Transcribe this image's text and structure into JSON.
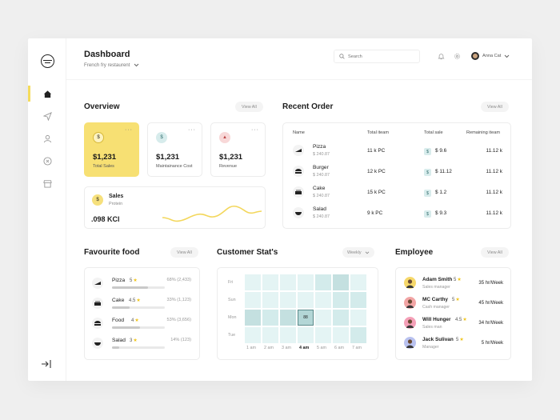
{
  "header": {
    "title": "Dashboard",
    "subtitle": "French fry restaurent",
    "search_placeholder": "Search",
    "user_name": "Anna Cat"
  },
  "sidebar": {
    "icons": [
      "logo-icon",
      "home-icon",
      "send-icon",
      "user-icon",
      "dollar-icon",
      "store-icon",
      "logout-icon"
    ],
    "active": "home-icon"
  },
  "overview": {
    "title": "Overview",
    "view_all": "View All",
    "cards": [
      {
        "value": "$1,231",
        "label": "Total Sales",
        "color": "#f7e073",
        "icon": "dollar-icon"
      },
      {
        "value": "$1,231",
        "label": "Maintainance Cost",
        "color": "#d7ecec",
        "icon": "dollar-icon"
      },
      {
        "value": "$1,231",
        "label": "Revenue",
        "color": "#f8d8d8",
        "icon": "pizza-icon"
      }
    ],
    "sales": {
      "name": "Sales",
      "sub": "Protein",
      "value": ".098 KCl"
    }
  },
  "recent_order": {
    "title": "Recent Order",
    "view_all": "View All",
    "columns": [
      "Name",
      "Total iteam",
      "Total sale",
      "Remaining iteam"
    ],
    "rows": [
      {
        "name": "Pizza",
        "price": "$  240.87",
        "items": "11 k PC",
        "sale": "$ 9.6",
        "remaining": "11.12 k"
      },
      {
        "name": "Burger",
        "price": "$  240.87",
        "items": "12 k PC",
        "sale": "$ 11.12",
        "remaining": "11.12 k"
      },
      {
        "name": "Cake",
        "price": "$  240.87",
        "items": "15 k PC",
        "sale": "$ 1.2",
        "remaining": "11.12 k"
      },
      {
        "name": "Salad",
        "price": "$  240.87",
        "items": "9 k PC",
        "sale": "$ 9.3",
        "remaining": "11.12 k"
      }
    ]
  },
  "favourite": {
    "title": "Favourite food",
    "view_all": "View All",
    "items": [
      {
        "name": "Pizza",
        "rating": "5",
        "pct": "68% (2,433)",
        "fill": 0.68
      },
      {
        "name": "Cake",
        "rating": "4.5",
        "pct": "33% (1,123)",
        "fill": 0.33
      },
      {
        "name": "Food",
        "rating": "4",
        "pct": "53% (3,656)",
        "fill": 0.53
      },
      {
        "name": "Salad",
        "rating": "3",
        "pct": "14% (123)",
        "fill": 0.14
      }
    ]
  },
  "customer": {
    "title": "Customer Stat's",
    "filter": "Weekly",
    "days": [
      "Fri",
      "Sun",
      "Mon",
      "Tue"
    ],
    "hours": [
      "1 am",
      "2 am",
      "3 am",
      "4 am",
      "5 am",
      "6 am",
      "7 am"
    ],
    "active_hour": "4 am",
    "highlight_value": "88",
    "levels": [
      [
        1,
        1,
        1,
        1,
        2,
        3,
        1
      ],
      [
        1,
        1,
        1,
        1,
        1,
        2,
        2
      ],
      [
        3,
        2,
        3,
        4,
        1,
        2,
        1
      ],
      [
        1,
        1,
        1,
        1,
        1,
        1,
        2
      ]
    ],
    "colors": [
      "#f0fafa",
      "#e4f4f4",
      "#d3ebeb",
      "#c4e0e0",
      "#b3d6d6"
    ]
  },
  "employee": {
    "title": "Employee",
    "view_all": "View All",
    "people": [
      {
        "name": "Adam Smith",
        "rating": "5",
        "role": "Sales manager",
        "rate": "35 hr/Week",
        "color": "#f6d86a"
      },
      {
        "name": "MC Carthy",
        "rating": "5",
        "role": "Cash manager",
        "rate": "45 hr/Week",
        "color": "#f2a5a5"
      },
      {
        "name": "Will Hunger",
        "rating": "4.5",
        "role": "Sales man",
        "rate": "34 hr/Week",
        "color": "#f5a0b8"
      },
      {
        "name": "Jack Sulivan",
        "rating": "5",
        "role": "Manager",
        "rate": "5 hr/Week",
        "color": "#b9c2f0"
      }
    ]
  }
}
